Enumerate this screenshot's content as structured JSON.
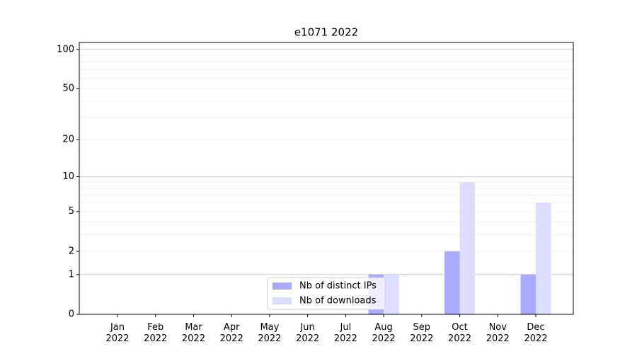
{
  "chart_data": {
    "type": "bar",
    "title": "e1071 2022",
    "categories": [
      "Jan 2022",
      "Feb 2022",
      "Mar 2022",
      "Apr 2022",
      "May 2022",
      "Jun 2022",
      "Jul 2022",
      "Aug 2022",
      "Sep 2022",
      "Oct 2022",
      "Nov 2022",
      "Dec 2022"
    ],
    "series": [
      {
        "name": "Nb of distinct IPs",
        "color": "#aaaaff",
        "values": [
          0,
          0,
          0,
          0,
          0,
          0,
          0,
          1,
          0,
          2,
          0,
          1
        ]
      },
      {
        "name": "Nb of downloads",
        "color": "#ddddff",
        "values": [
          0,
          0,
          0,
          0,
          0,
          0,
          0,
          1,
          0,
          9,
          0,
          6
        ]
      }
    ],
    "yscale": "log1p",
    "ylim": [
      0,
      113
    ],
    "yticks": [
      0,
      1,
      2,
      5,
      10,
      20,
      50,
      100
    ],
    "major_grid": [
      1,
      10,
      100
    ],
    "minor_grid": [
      3,
      4,
      6,
      7,
      8,
      9,
      30,
      40,
      60,
      70,
      80,
      90
    ],
    "grid": true,
    "legend": "lower center"
  }
}
